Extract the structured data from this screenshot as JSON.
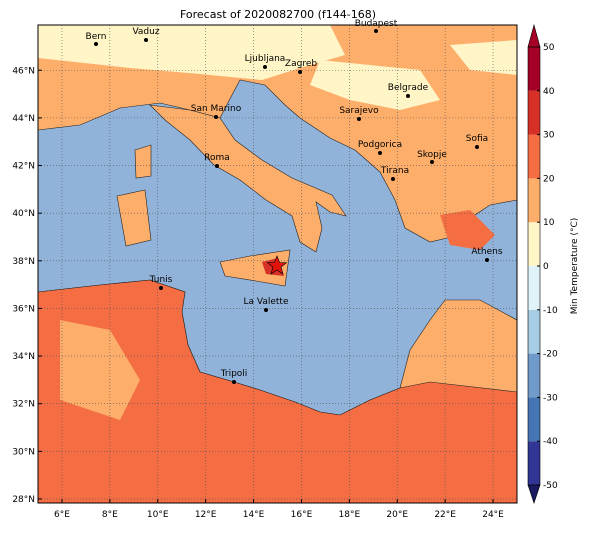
{
  "map": {
    "title": "Forecast of 2020082700 (f144-168)",
    "cities": [
      "Bern",
      "Vaduz",
      "Budapest",
      "Ljubljana",
      "Zagreb",
      "Belgrade",
      "Sarajevo",
      "San Marino",
      "Roma",
      "Podgorica",
      "Skopje",
      "Sofia",
      "Tirana",
      "Athens",
      "Tunis",
      "La Valette",
      "Tripoli"
    ],
    "xlim": [
      5,
      25
    ],
    "ylim": [
      27.83,
      47.9
    ],
    "xticks": [
      {
        "value": 6,
        "label": "6°E"
      },
      {
        "value": 8,
        "label": "8°E"
      },
      {
        "value": 10,
        "label": "10°E"
      },
      {
        "value": 12,
        "label": "12°E"
      },
      {
        "value": 14,
        "label": "14°E"
      },
      {
        "value": 16,
        "label": "16°E"
      },
      {
        "value": 18,
        "label": "18°E"
      },
      {
        "value": 20,
        "label": "20°E"
      },
      {
        "value": 22,
        "label": "22°E"
      },
      {
        "value": 24,
        "label": "24°E"
      }
    ],
    "yticks": [
      {
        "value": 28,
        "label": "28°N"
      },
      {
        "value": 30,
        "label": "30°N"
      },
      {
        "value": 32,
        "label": "32°N"
      },
      {
        "value": 34,
        "label": "34°N"
      },
      {
        "value": 36,
        "label": "36°N"
      },
      {
        "value": 38,
        "label": "38°N"
      },
      {
        "value": 40,
        "label": "40°N"
      },
      {
        "value": 42,
        "label": "42°N"
      },
      {
        "value": 44,
        "label": "44°N"
      },
      {
        "value": 46,
        "label": "46°N"
      }
    ],
    "grid": true,
    "colorbar": {
      "label": "Min Temperature (°C)",
      "lim": [
        -50,
        50
      ],
      "ticks": [
        -50,
        -40,
        -30,
        -20,
        -10,
        0,
        10,
        20,
        30,
        40,
        50
      ],
      "colors": [
        "#313695",
        "#4575b4",
        "#6f9ac9",
        "#a6cde3",
        "#e0f3f8",
        "#fff5c6",
        "#fdae6b",
        "#f46d43",
        "#d73027",
        "#a50026"
      ]
    }
  }
}
